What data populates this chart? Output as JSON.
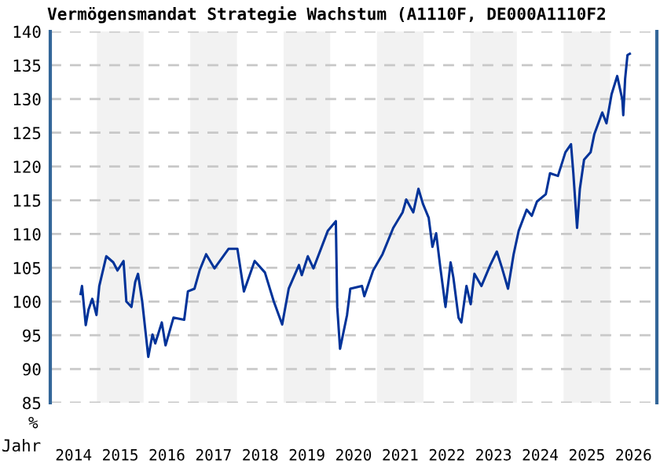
{
  "chart_data": {
    "type": "line",
    "title": "Vermögensmandat Strategie Wachstum (A1110F, DE000A1110F2",
    "xlabel": "Jahr",
    "ylabel": "%",
    "x": [
      2014.65,
      2014.68,
      2014.76,
      2014.82,
      2014.9,
      2014.99,
      2015.05,
      2015.2,
      2015.35,
      2015.44,
      2015.57,
      2015.63,
      2015.74,
      2015.82,
      2015.88,
      2015.97,
      2016.1,
      2016.19,
      2016.25,
      2016.39,
      2016.47,
      2016.64,
      2016.87,
      2016.95,
      2017.09,
      2017.2,
      2017.34,
      2017.52,
      2017.82,
      2018.01,
      2018.15,
      2018.38,
      2018.6,
      2018.79,
      2018.97,
      2019.11,
      2019.33,
      2019.39,
      2019.52,
      2019.64,
      2019.95,
      2020.12,
      2020.15,
      2020.21,
      2020.36,
      2020.43,
      2020.68,
      2020.73,
      2020.92,
      2021.12,
      2021.35,
      2021.55,
      2021.63,
      2021.78,
      2021.89,
      2021.99,
      2022.11,
      2022.19,
      2022.27,
      2022.36,
      2022.47,
      2022.58,
      2022.64,
      2022.75,
      2022.81,
      2022.92,
      2023.01,
      2023.09,
      2023.24,
      2023.43,
      2023.57,
      2023.68,
      2023.81,
      2023.93,
      2024.04,
      2024.21,
      2024.32,
      2024.43,
      2024.62,
      2024.71,
      2024.88,
      2025.04,
      2025.16,
      2025.21,
      2025.29,
      2025.35,
      2025.44,
      2025.58,
      2025.66,
      2025.83,
      2025.92,
      2026.03,
      2026.15,
      2026.26,
      2026.28,
      2026.32,
      2026.37,
      2026.42
    ],
    "series": [
      {
        "color": "#003399",
        "values": [
          101.1,
          102.3,
          96.5,
          98.8,
          100.4,
          98.0,
          102.3,
          106.7,
          105.8,
          104.6,
          106.0,
          100.0,
          99.2,
          102.9,
          104.1,
          100.0,
          91.8,
          95.1,
          93.8,
          96.9,
          93.5,
          97.6,
          97.3,
          101.5,
          101.9,
          104.6,
          107.0,
          104.9,
          107.8,
          107.8,
          101.5,
          106.0,
          104.3,
          100.0,
          96.6,
          101.9,
          105.4,
          103.9,
          106.7,
          104.9,
          110.5,
          111.9,
          99.2,
          93.0,
          98.0,
          101.9,
          102.3,
          100.8,
          104.6,
          107.0,
          110.9,
          113.2,
          115.1,
          113.2,
          116.7,
          114.4,
          112.4,
          108.1,
          110.1,
          105.0,
          99.2,
          105.8,
          103.5,
          97.6,
          96.9,
          102.3,
          99.6,
          104.1,
          102.3,
          105.4,
          107.4,
          105.0,
          101.9,
          107.0,
          110.5,
          113.6,
          112.7,
          114.8,
          115.9,
          119.0,
          118.6,
          122.1,
          123.3,
          119.0,
          110.9,
          116.7,
          121.0,
          122.1,
          124.8,
          128.0,
          126.4,
          130.7,
          133.4,
          129.9,
          127.6,
          133.0,
          136.5,
          136.7
        ]
      }
    ],
    "xlim": [
      2014,
      2027
    ],
    "ylim": [
      85,
      140
    ],
    "xticks": [
      {
        "value": 2014.5,
        "label": "2014"
      },
      {
        "value": 2015.5,
        "label": "2015"
      },
      {
        "value": 2016.5,
        "label": "2016"
      },
      {
        "value": 2017.5,
        "label": "2017"
      },
      {
        "value": 2018.5,
        "label": "2018"
      },
      {
        "value": 2019.5,
        "label": "2019"
      },
      {
        "value": 2020.5,
        "label": "2020"
      },
      {
        "value": 2021.5,
        "label": "2021"
      },
      {
        "value": 2022.5,
        "label": "2022"
      },
      {
        "value": 2023.5,
        "label": "2023"
      },
      {
        "value": 2024.5,
        "label": "2024"
      },
      {
        "value": 2025.5,
        "label": "2025"
      },
      {
        "value": 2026.5,
        "label": "2026"
      }
    ],
    "yticks": [
      85,
      90,
      95,
      100,
      105,
      110,
      115,
      120,
      125,
      130,
      135,
      140
    ],
    "bands": [
      {
        "axis": "x",
        "from": 2015,
        "to": 2016,
        "color": "#f2f2f2"
      },
      {
        "axis": "x",
        "from": 2017,
        "to": 2018,
        "color": "#f2f2f2"
      },
      {
        "axis": "x",
        "from": 2019,
        "to": 2020,
        "color": "#f2f2f2"
      },
      {
        "axis": "x",
        "from": 2021,
        "to": 2022,
        "color": "#f2f2f2"
      },
      {
        "axis": "x",
        "from": 2023,
        "to": 2024,
        "color": "#f2f2f2"
      },
      {
        "axis": "x",
        "from": 2025,
        "to": 2026,
        "color": "#f2f2f2"
      }
    ],
    "grid": "y",
    "legend": false,
    "marker": "none",
    "line_style": "solid"
  }
}
